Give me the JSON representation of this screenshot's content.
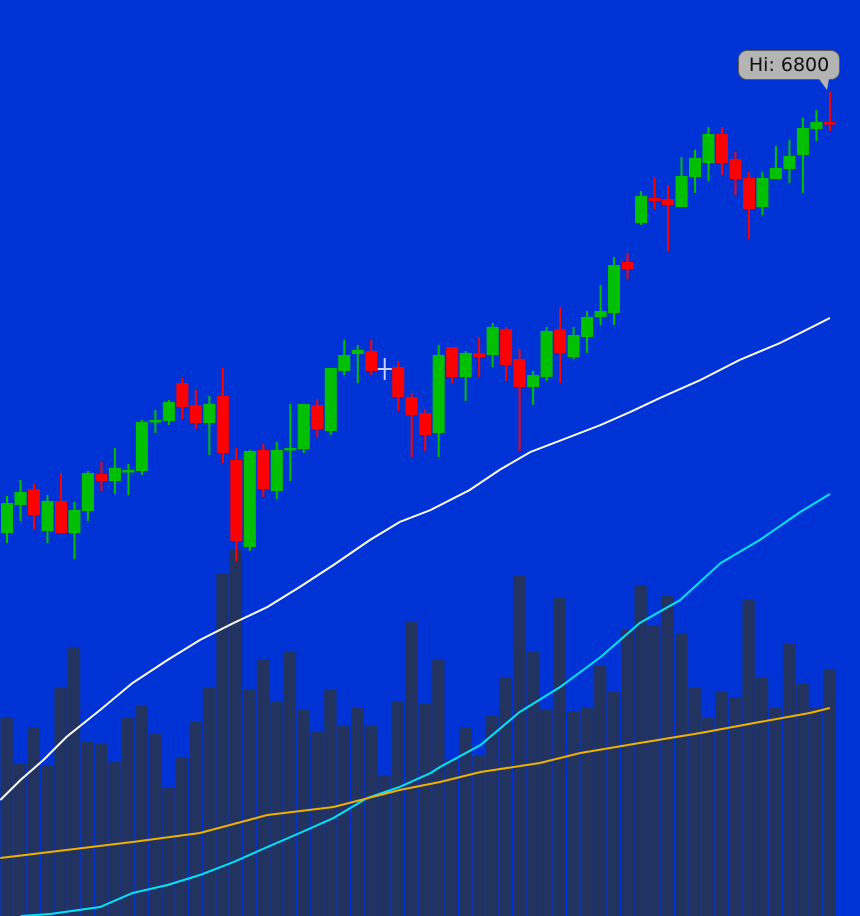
{
  "chart_data": {
    "type": "candlestick",
    "title": "",
    "xlabel": "",
    "ylabel": "",
    "ylim": [
      5152,
      6984
    ],
    "volume_lim": [
      0,
      9160
    ],
    "grid": false,
    "colors": {
      "background": "#0033d6",
      "up": "#00c000",
      "down": "#ff0000",
      "volume": "#22335f",
      "ma_white": "#ffffff",
      "ma_cyan": "#00e5ff",
      "ma_orange": "#f0b000",
      "crosshair": "#c8d0ff",
      "tooltip": "#b4b4b4"
    },
    "tooltip": {
      "label": "Hi: 6800",
      "index": 61,
      "price": 6800
    },
    "crosshair": {
      "index": 28,
      "price": 6246
    },
    "candles": [
      [
        5918,
        5992,
        5898,
        5978
      ],
      [
        5974,
        6024,
        5942,
        6000
      ],
      [
        6006,
        6016,
        5926,
        5954
      ],
      [
        5922,
        5994,
        5898,
        5982
      ],
      [
        5982,
        6038,
        5918,
        5918
      ],
      [
        5918,
        5980,
        5866,
        5964
      ],
      [
        5962,
        6042,
        5942,
        6038
      ],
      [
        6036,
        6060,
        6002,
        6022
      ],
      [
        6022,
        6088,
        5996,
        6048
      ],
      [
        6040,
        6056,
        5994,
        6044
      ],
      [
        6042,
        6144,
        6034,
        6140
      ],
      [
        6140,
        6164,
        6118,
        6144
      ],
      [
        6142,
        6184,
        6134,
        6180
      ],
      [
        6218,
        6228,
        6146,
        6170
      ],
      [
        6174,
        6204,
        6126,
        6138
      ],
      [
        6138,
        6192,
        6074,
        6176
      ],
      [
        6192,
        6248,
        6058,
        6078
      ],
      [
        6064,
        6088,
        5862,
        5902
      ],
      [
        5890,
        6084,
        5882,
        6082
      ],
      [
        6084,
        6096,
        5990,
        6006
      ],
      [
        6002,
        6100,
        5986,
        6084
      ],
      [
        6084,
        6176,
        6022,
        6088
      ],
      [
        6086,
        6176,
        6078,
        6176
      ],
      [
        6174,
        6186,
        6110,
        6126
      ],
      [
        6122,
        6248,
        6114,
        6248
      ],
      [
        6242,
        6304,
        6234,
        6274
      ],
      [
        6276,
        6294,
        6218,
        6284
      ],
      [
        6282,
        6304,
        6234,
        6242
      ],
      null,
      [
        6250,
        6262,
        6162,
        6190
      ],
      [
        6190,
        6198,
        6070,
        6154
      ],
      [
        6158,
        6166,
        6082,
        6114
      ],
      [
        6118,
        6294,
        6070,
        6274
      ],
      [
        6290,
        6290,
        6218,
        6230
      ],
      [
        6230,
        6282,
        6182,
        6278
      ],
      [
        6278,
        6310,
        6230,
        6270
      ],
      [
        6274,
        6338,
        6250,
        6330
      ],
      [
        6326,
        6330,
        6222,
        6254
      ],
      [
        6266,
        6286,
        6082,
        6210
      ],
      [
        6210,
        6242,
        6174,
        6234
      ],
      [
        6230,
        6330,
        6222,
        6322
      ],
      [
        6326,
        6370,
        6218,
        6278
      ],
      [
        6270,
        6330,
        6266,
        6314
      ],
      [
        6310,
        6362,
        6278,
        6350
      ],
      [
        6350,
        6414,
        6334,
        6362
      ],
      [
        6358,
        6470,
        6334,
        6454
      ],
      [
        6460,
        6478,
        6426,
        6446
      ],
      [
        6538,
        6602,
        6534,
        6592
      ],
      [
        6588,
        6630,
        6566,
        6582
      ],
      [
        6586,
        6614,
        6482,
        6574
      ],
      [
        6570,
        6670,
        6570,
        6632
      ],
      [
        6630,
        6684,
        6598,
        6668
      ],
      [
        6658,
        6730,
        6622,
        6716
      ],
      [
        6716,
        6730,
        6634,
        6658
      ],
      [
        6666,
        6680,
        6594,
        6626
      ],
      [
        6628,
        6640,
        6506,
        6566
      ],
      [
        6570,
        6640,
        6554,
        6628
      ],
      [
        6626,
        6692,
        6626,
        6648
      ],
      [
        6646,
        6704,
        6618,
        6672
      ],
      [
        6674,
        6748,
        6598,
        6728
      ],
      [
        6726,
        6764,
        6702,
        6740
      ],
      [
        6740,
        6800,
        6722,
        6736
      ]
    ],
    "volume": [
      1980,
      1520,
      1880,
      1500,
      2280,
      2680,
      1740,
      1720,
      1540,
      1980,
      2100,
      1820,
      1280,
      1580,
      1940,
      2280,
      3420,
      3660,
      2260,
      2560,
      2140,
      2640,
      2060,
      1840,
      2260,
      1900,
      2080,
      1900,
      1400,
      2140,
      2940,
      2120,
      2560,
      1560,
      1880,
      1600,
      2000,
      2380,
      3400,
      2640,
      2060,
      3180,
      2040,
      2080,
      2500,
      2240,
      2860,
      3300,
      2900,
      3200,
      2820,
      2280,
      1980,
      2240,
      2180,
      3160,
      2380,
      2080,
      2720,
      2320,
      2080,
      2460
    ],
    "moving_averages": [
      {
        "color": "#ffffff",
        "points": [
          [
            -0.5,
            5384
          ],
          [
            1.0,
            5424
          ],
          [
            2.7,
            5464
          ],
          [
            4.4,
            5510
          ],
          [
            6.9,
            5564
          ],
          [
            9.3,
            5618
          ],
          [
            11.9,
            5664
          ],
          [
            14.3,
            5704
          ],
          [
            16.8,
            5738
          ],
          [
            19.3,
            5770
          ],
          [
            21.7,
            5810
          ],
          [
            24.2,
            5854
          ],
          [
            26.9,
            5904
          ],
          [
            29.1,
            5940
          ],
          [
            31.4,
            5964
          ],
          [
            34.3,
            6004
          ],
          [
            36.5,
            6044
          ],
          [
            38.8,
            6080
          ],
          [
            41.7,
            6110
          ],
          [
            44.0,
            6134
          ],
          [
            46.2,
            6160
          ],
          [
            48.4,
            6188
          ],
          [
            51.4,
            6224
          ],
          [
            54.3,
            6264
          ],
          [
            57.3,
            6298
          ],
          [
            58.8,
            6318
          ],
          [
            61.0,
            6348
          ]
        ]
      },
      {
        "color": "#00e5ff",
        "points": [
          [
            1.0,
            5152
          ],
          [
            3.2,
            5156
          ],
          [
            6.9,
            5170
          ],
          [
            9.3,
            5198
          ],
          [
            11.9,
            5214
          ],
          [
            14.3,
            5234
          ],
          [
            16.8,
            5260
          ],
          [
            19.3,
            5290
          ],
          [
            21.7,
            5318
          ],
          [
            24.2,
            5348
          ],
          [
            26.7,
            5388
          ],
          [
            29.1,
            5410
          ],
          [
            31.4,
            5438
          ],
          [
            32.1,
            5450
          ],
          [
            35.1,
            5494
          ],
          [
            38.0,
            5560
          ],
          [
            41.0,
            5610
          ],
          [
            44.0,
            5670
          ],
          [
            46.9,
            5738
          ],
          [
            49.9,
            5784
          ],
          [
            52.9,
            5858
          ],
          [
            55.8,
            5904
          ],
          [
            58.8,
            5960
          ],
          [
            61.0,
            5996
          ]
        ]
      },
      {
        "color": "#f0b000",
        "points": [
          [
            -0.5,
            5268
          ],
          [
            4.4,
            5284
          ],
          [
            9.3,
            5300
          ],
          [
            14.3,
            5318
          ],
          [
            19.3,
            5354
          ],
          [
            24.2,
            5370
          ],
          [
            29.1,
            5404
          ],
          [
            32.1,
            5420
          ],
          [
            35.1,
            5440
          ],
          [
            39.5,
            5458
          ],
          [
            42.5,
            5478
          ],
          [
            46.9,
            5498
          ],
          [
            51.4,
            5518
          ],
          [
            55.8,
            5540
          ],
          [
            59.5,
            5558
          ],
          [
            61.0,
            5568
          ]
        ]
      }
    ]
  }
}
